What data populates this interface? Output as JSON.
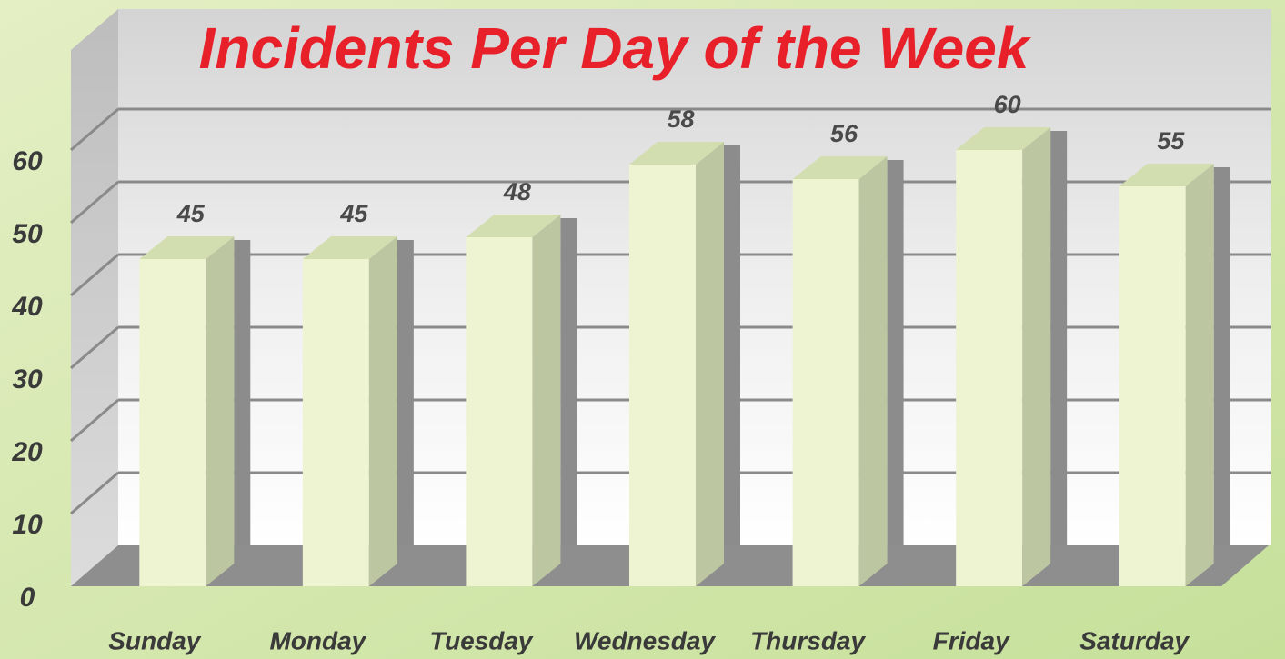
{
  "chart_data": {
    "type": "bar3d",
    "title": "Incidents Per Day of the Week",
    "categories": [
      "Sunday",
      "Monday",
      "Tuesday",
      "Wednesday",
      "Thursday",
      "Friday",
      "Saturday"
    ],
    "values": [
      45,
      45,
      48,
      58,
      56,
      60,
      55
    ],
    "color": "#eef3d2",
    "ylim": [
      0,
      60
    ],
    "yticks": [
      0,
      10,
      20,
      30,
      40,
      50,
      60
    ],
    "grid": true
  }
}
